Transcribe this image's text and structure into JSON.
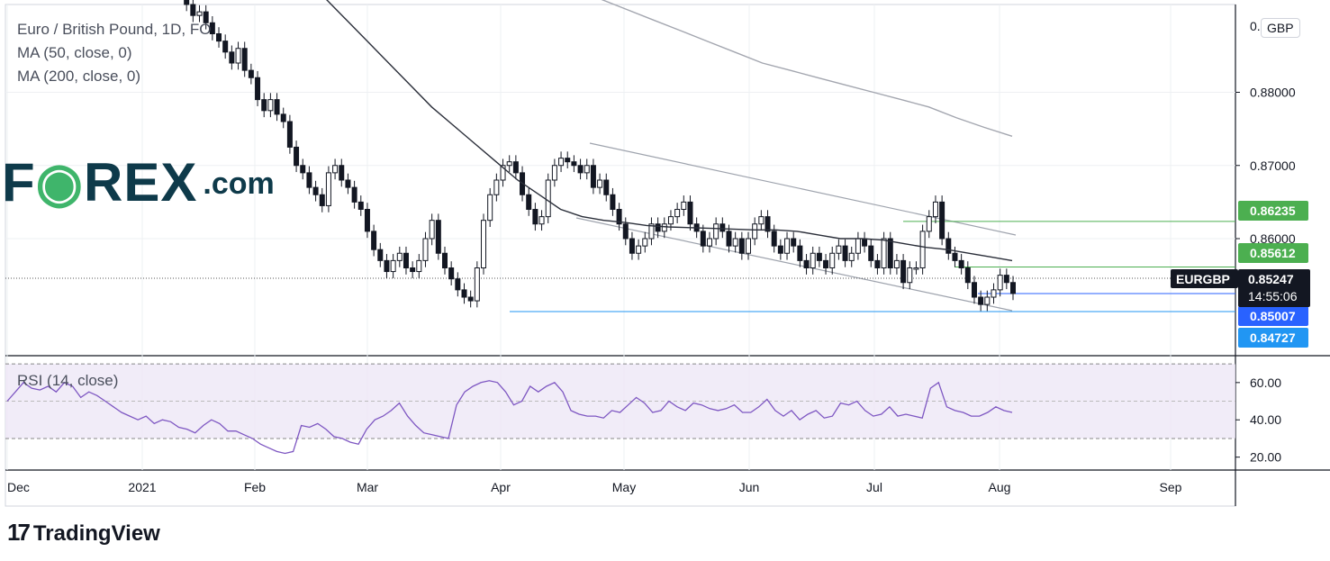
{
  "header": {
    "symbol_line": "Euro / British Pound, 1D, FO",
    "ma50_label": "MA (50, close, 0)",
    "ma200_label": "MA (200, close, 0)"
  },
  "logo": {
    "brand": "F",
    "brand_rest": "REX",
    "dotcom": ".com"
  },
  "currency_badge": "GBP",
  "footer": {
    "brand": "TradingView",
    "mark": "17"
  },
  "chart_data": [
    {
      "type": "line",
      "title": "Euro / British Pound, 1D, FO",
      "ylim": [
        0.844,
        0.892
      ],
      "y_ticks": [
        0.88,
        0.87,
        0.86
      ],
      "y_tick_labels": [
        "0.88000",
        "0.87000",
        "0.86000"
      ],
      "x_ticks": [
        "Dec",
        "2021",
        "Feb",
        "Mar",
        "Apr",
        "May",
        "Jun",
        "Jul",
        "Aug",
        "Sep"
      ],
      "price_labels": [
        {
          "label": "0.86235",
          "value": 0.86235,
          "color": "#4caf50"
        },
        {
          "label": "0.85612",
          "value": 0.85612,
          "color": "#4caf50"
        },
        {
          "label": "0.85007",
          "value": 0.85007,
          "color": "#2962ff"
        },
        {
          "label": "0.84727",
          "value": 0.84727,
          "color": "#2196f3"
        }
      ],
      "last_price": {
        "symbol": "EURGBP",
        "value": 0.85247,
        "label": "0.85247",
        "countdown": "14:55:06"
      },
      "series": [
        {
          "name": "EURGBP",
          "close": [
            0.8945,
            0.892,
            0.8905,
            0.891,
            0.8895,
            0.888,
            0.887,
            0.8855,
            0.884,
            0.886,
            0.883,
            0.882,
            0.879,
            0.8775,
            0.879,
            0.877,
            0.876,
            0.8725,
            0.87,
            0.869,
            0.867,
            0.866,
            0.8645,
            0.869,
            0.87,
            0.868,
            0.867,
            0.865,
            0.864,
            0.861,
            0.8585,
            0.857,
            0.8555,
            0.857,
            0.858,
            0.856,
            0.8555,
            0.857,
            0.86,
            0.8625,
            0.858,
            0.856,
            0.8545,
            0.853,
            0.852,
            0.8515,
            0.856,
            0.8625,
            0.866,
            0.868,
            0.87,
            0.8705,
            0.869,
            0.866,
            0.864,
            0.862,
            0.863,
            0.868,
            0.87,
            0.871,
            0.8705,
            0.87,
            0.869,
            0.87,
            0.867,
            0.868,
            0.866,
            0.864,
            0.862,
            0.86,
            0.858,
            0.859,
            0.86,
            0.862,
            0.861,
            0.862,
            0.863,
            0.864,
            0.865,
            0.862,
            0.861,
            0.859,
            0.86,
            0.862,
            0.861,
            0.859,
            0.86,
            0.858,
            0.86,
            0.862,
            0.863,
            0.861,
            0.859,
            0.858,
            0.86,
            0.859,
            0.857,
            0.856,
            0.858,
            0.857,
            0.856,
            0.858,
            0.859,
            0.857,
            0.858,
            0.86,
            0.859,
            0.857,
            0.856,
            0.86,
            0.856,
            0.857,
            0.854,
            0.856,
            0.856,
            0.861,
            0.863,
            0.865,
            0.86,
            0.858,
            0.857,
            0.856,
            0.854,
            0.852,
            0.851,
            0.852,
            0.853,
            0.855,
            0.854,
            0.8525
          ],
          "color": "#131722"
        },
        {
          "name": "MA (50, close, 0)",
          "values": [
            0.893,
            0.89,
            0.887,
            0.884,
            0.881,
            0.878,
            0.8755,
            0.873,
            0.8705,
            0.868,
            0.866,
            0.864,
            0.863,
            0.8625,
            0.8622,
            0.8618,
            0.8616,
            0.8615,
            0.8614,
            0.8613,
            0.8612,
            0.8612,
            0.861,
            0.8605,
            0.86,
            0.86,
            0.8598,
            0.8593,
            0.8588,
            0.8585,
            0.858,
            0.8575,
            0.857
          ],
          "color": "#2a2e39"
        },
        {
          "name": "MA (200, close, 0)",
          "values": [
            0.896,
            0.8945,
            0.893,
            0.8915,
            0.89,
            0.8885,
            0.887,
            0.8855,
            0.884,
            0.883,
            0.882,
            0.881,
            0.88,
            0.879,
            0.878,
            0.8765,
            0.8752,
            0.874
          ],
          "color": "#a3a6af"
        }
      ]
    },
    {
      "type": "line",
      "title": "RSI (14, close)",
      "ylim": [
        15,
        72
      ],
      "y_ticks": [
        60,
        40,
        20
      ],
      "y_tick_labels": [
        "60.00",
        "40.00",
        "20.00"
      ],
      "band": [
        30,
        70
      ],
      "series": [
        {
          "name": "RSI (14, close)",
          "values": [
            50,
            55,
            60,
            57,
            56,
            58,
            55,
            60,
            58,
            52,
            55,
            53,
            50,
            47,
            44,
            42,
            40,
            42,
            38,
            40,
            39,
            36,
            35,
            33,
            37,
            40,
            38,
            34,
            34,
            32,
            30,
            27,
            25,
            23,
            22,
            23,
            37,
            36,
            38,
            35,
            31,
            30,
            28,
            27,
            35,
            40,
            42,
            45,
            49,
            42,
            37,
            33,
            32,
            31,
            30,
            48,
            55,
            58,
            60,
            61,
            60,
            55,
            48,
            50,
            58,
            55,
            58,
            60,
            55,
            45,
            43,
            42,
            42,
            41,
            45,
            44,
            48,
            52,
            49,
            44,
            45,
            50,
            47,
            45,
            49,
            48,
            46,
            45,
            46,
            48,
            44,
            44,
            47,
            51,
            45,
            42,
            45,
            40,
            43,
            45,
            41,
            42,
            49,
            48,
            50,
            45,
            42,
            43,
            47,
            42,
            43,
            42,
            41,
            57,
            60,
            47,
            45,
            44,
            42,
            42,
            44,
            47,
            45,
            44
          ],
          "color": "#7e57c2"
        }
      ]
    }
  ]
}
